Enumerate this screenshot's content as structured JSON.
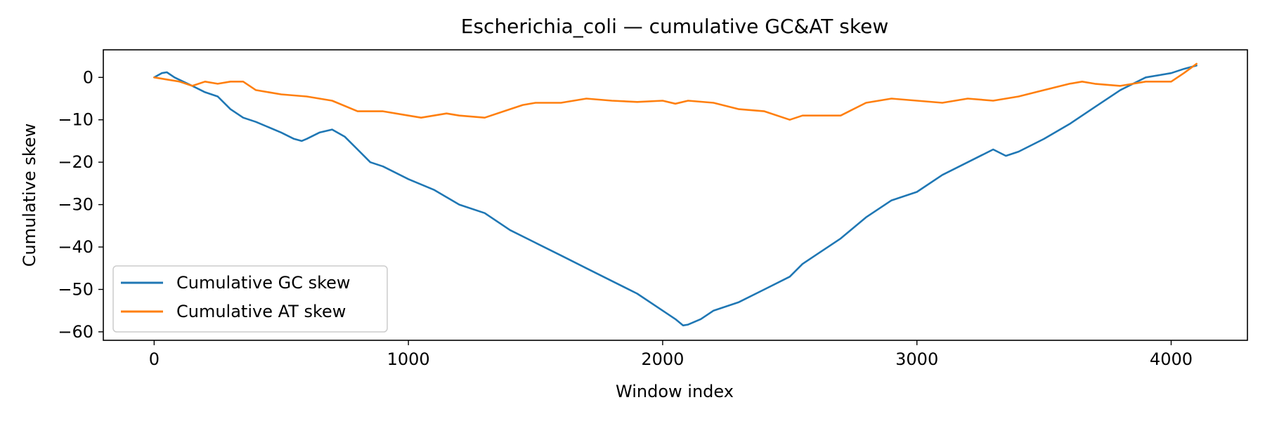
{
  "chart_data": {
    "type": "line",
    "title": "Escherichia_coli — cumulative GC&AT skew",
    "xlabel": "Window index",
    "ylabel": "Cumulative skew",
    "xlim": [
      -200,
      4300
    ],
    "ylim": [
      -62,
      6.5
    ],
    "xticks": [
      0,
      1000,
      2000,
      3000,
      4000
    ],
    "xtick_labels": [
      "0",
      "1000",
      "2000",
      "3000",
      "4000"
    ],
    "yticks": [
      0,
      -10,
      -20,
      -30,
      -40,
      -50,
      -60
    ],
    "ytick_labels": [
      "0",
      "−10",
      "−20",
      "−30",
      "−40",
      "−50",
      "−60"
    ],
    "grid": false,
    "legend_position": "lower-left",
    "series": [
      {
        "name": "Cumulative GC skew",
        "color": "#1f77b4",
        "x": [
          0,
          30,
          50,
          80,
          150,
          200,
          250,
          300,
          350,
          400,
          500,
          550,
          580,
          600,
          650,
          700,
          750,
          800,
          850,
          900,
          1000,
          1100,
          1200,
          1300,
          1400,
          1500,
          1600,
          1700,
          1800,
          1900,
          2000,
          2050,
          2080,
          2100,
          2150,
          2200,
          2300,
          2400,
          2500,
          2550,
          2600,
          2700,
          2800,
          2900,
          3000,
          3100,
          3200,
          3300,
          3350,
          3400,
          3500,
          3600,
          3700,
          3800,
          3900,
          4000,
          4050,
          4100
        ],
        "y": [
          0,
          1,
          1.2,
          0,
          -2,
          -3.5,
          -4.5,
          -7.5,
          -9.5,
          -10.5,
          -13,
          -14.5,
          -15,
          -14.5,
          -13,
          -12.3,
          -14,
          -17,
          -20,
          -21,
          -24,
          -26.5,
          -30,
          -32,
          -36,
          -39,
          -42,
          -45,
          -48,
          -51,
          -55,
          -57,
          -58.5,
          -58.3,
          -57,
          -55,
          -53,
          -50,
          -47,
          -44,
          -42,
          -38,
          -33,
          -29,
          -27,
          -23,
          -20,
          -17,
          -18.5,
          -17.5,
          -14.5,
          -11,
          -7,
          -3,
          0,
          1,
          2,
          2.8
        ]
      },
      {
        "name": "Cumulative AT skew",
        "color": "#ff7f0e",
        "x": [
          0,
          50,
          100,
          150,
          200,
          250,
          300,
          350,
          400,
          500,
          600,
          700,
          800,
          900,
          1000,
          1050,
          1100,
          1150,
          1200,
          1300,
          1400,
          1450,
          1500,
          1600,
          1700,
          1800,
          1900,
          2000,
          2050,
          2100,
          2200,
          2300,
          2400,
          2500,
          2550,
          2600,
          2700,
          2800,
          2900,
          3000,
          3100,
          3200,
          3300,
          3400,
          3500,
          3600,
          3650,
          3700,
          3800,
          3900,
          4000,
          4050,
          4100
        ],
        "y": [
          0,
          -0.5,
          -1,
          -2,
          -1,
          -1.5,
          -1,
          -1,
          -3,
          -4,
          -4.5,
          -5.5,
          -8,
          -8,
          -9,
          -9.5,
          -9,
          -8.5,
          -9,
          -9.5,
          -7.5,
          -6.5,
          -6,
          -6,
          -5,
          -5.5,
          -5.8,
          -5.5,
          -6.2,
          -5.5,
          -6,
          -7.5,
          -8,
          -10,
          -9,
          -9,
          -9,
          -6,
          -5,
          -5.5,
          -6,
          -5,
          -5.5,
          -4.5,
          -3,
          -1.5,
          -1,
          -1.5,
          -2,
          -1,
          -1,
          1,
          3.2
        ]
      }
    ]
  }
}
